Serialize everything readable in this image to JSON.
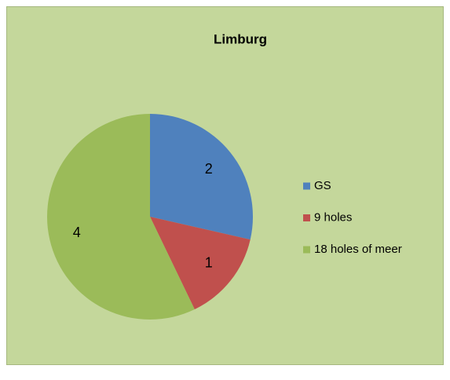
{
  "chart_data": {
    "type": "pie",
    "title": "Limburg",
    "categories": [
      "GS",
      "9 holes",
      "18 holes of meer"
    ],
    "values": [
      2,
      1,
      4
    ],
    "colors": [
      "#4f81bd",
      "#c0504d",
      "#9bbb59"
    ],
    "legend": "right"
  }
}
